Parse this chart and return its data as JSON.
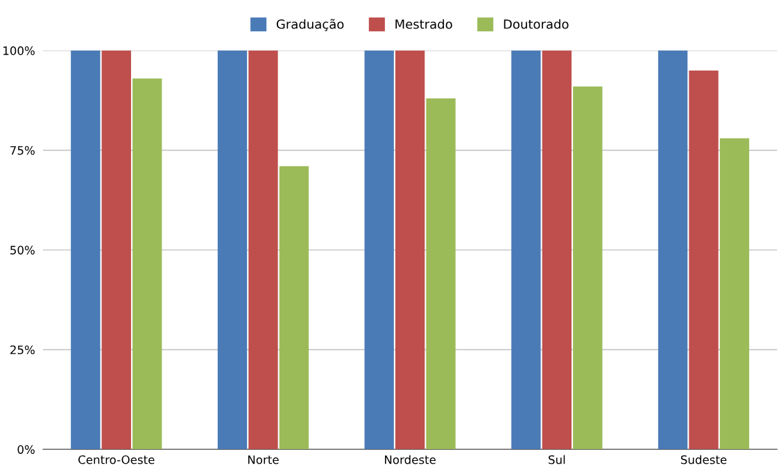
{
  "chart_data": {
    "type": "bar",
    "categories": [
      "Centro-Oeste",
      "Norte",
      "Nordeste",
      "Sul",
      "Sudeste"
    ],
    "series": [
      {
        "name": "Graduação",
        "color": "#4a7bb7",
        "values": [
          100,
          100,
          100,
          100,
          100
        ]
      },
      {
        "name": "Mestrado",
        "color": "#be4f4c",
        "values": [
          100,
          100,
          100,
          100,
          95
        ]
      },
      {
        "name": "Doutorado",
        "color": "#9bbb59",
        "values": [
          93,
          71,
          88,
          91,
          78
        ]
      }
    ],
    "ylim": [
      0,
      100
    ],
    "yticks": [
      {
        "value": 0,
        "label": "0%"
      },
      {
        "value": 25,
        "label": "25%"
      },
      {
        "value": 50,
        "label": "50%"
      },
      {
        "value": 75,
        "label": "75%"
      },
      {
        "value": 100,
        "label": "100%"
      }
    ],
    "grid": "y",
    "legend": "top"
  }
}
